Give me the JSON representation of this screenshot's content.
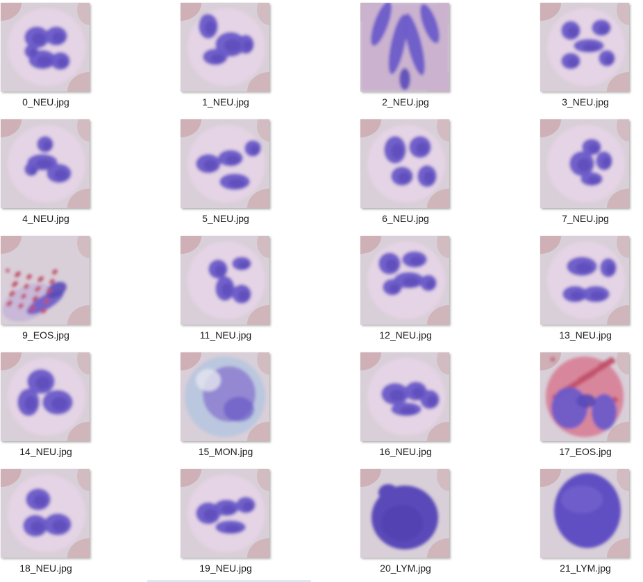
{
  "files": [
    {
      "name": "0_NEU.jpg",
      "type": "NEU",
      "icon": "blood-cell-thumbnail-icon"
    },
    {
      "name": "1_NEU.jpg",
      "type": "NEU",
      "icon": "blood-cell-thumbnail-icon"
    },
    {
      "name": "2_NEU.jpg",
      "type": "NEU",
      "icon": "blood-cell-thumbnail-icon"
    },
    {
      "name": "3_NEU.jpg",
      "type": "NEU",
      "icon": "blood-cell-thumbnail-icon"
    },
    {
      "name": "4_NEU.jpg",
      "type": "NEU",
      "icon": "blood-cell-thumbnail-icon"
    },
    {
      "name": "5_NEU.jpg",
      "type": "NEU",
      "icon": "blood-cell-thumbnail-icon"
    },
    {
      "name": "6_NEU.jpg",
      "type": "NEU",
      "icon": "blood-cell-thumbnail-icon"
    },
    {
      "name": "7_NEU.jpg",
      "type": "NEU",
      "icon": "blood-cell-thumbnail-icon"
    },
    {
      "name": "9_EOS.jpg",
      "type": "EOS",
      "icon": "blood-cell-thumbnail-icon"
    },
    {
      "name": "11_NEU.jpg",
      "type": "NEU",
      "icon": "blood-cell-thumbnail-icon"
    },
    {
      "name": "12_NEU.jpg",
      "type": "NEU",
      "icon": "blood-cell-thumbnail-icon"
    },
    {
      "name": "13_NEU.jpg",
      "type": "NEU",
      "icon": "blood-cell-thumbnail-icon"
    },
    {
      "name": "14_NEU.jpg",
      "type": "NEU",
      "icon": "blood-cell-thumbnail-icon"
    },
    {
      "name": "15_MON.jpg",
      "type": "MON",
      "icon": "blood-cell-thumbnail-icon"
    },
    {
      "name": "16_NEU.jpg",
      "type": "NEU",
      "icon": "blood-cell-thumbnail-icon"
    },
    {
      "name": "17_EOS.jpg",
      "type": "EOS",
      "icon": "blood-cell-thumbnail-icon"
    },
    {
      "name": "18_NEU.jpg",
      "type": "NEU",
      "icon": "blood-cell-thumbnail-icon"
    },
    {
      "name": "19_NEU.jpg",
      "type": "NEU",
      "icon": "blood-cell-thumbnail-icon"
    },
    {
      "name": "20_LYM.jpg",
      "type": "LYM",
      "icon": "blood-cell-thumbnail-icon"
    },
    {
      "name": "21_LYM.jpg",
      "type": "LYM",
      "icon": "blood-cell-thumbnail-icon"
    }
  ],
  "colors": {
    "background": "#ffffff",
    "plasma": "#d9cfd8",
    "cytoplasm_neu": "#e6d4e6",
    "nucleus": "#6b5bc9",
    "nucleus_dark": "#5a4ab8",
    "rbc": "#c9a3a8",
    "eos_granule": "#c0506a",
    "mon_cytoplasm": "#b9c7df"
  }
}
